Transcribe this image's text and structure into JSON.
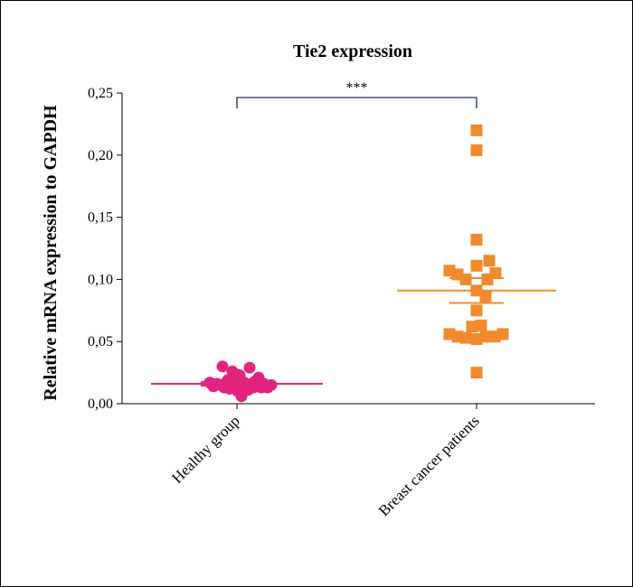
{
  "chart_data": {
    "type": "scatter",
    "title": "Tie2 expression",
    "ylabel": "Relative mRNA expression to GAPDH",
    "xlabel": "",
    "ylim": [
      0,
      0.25
    ],
    "yticks": [
      "0,00",
      "0,05",
      "0,10",
      "0,15",
      "0,20",
      "0,25"
    ],
    "categories": [
      "Healthy group",
      "Breast cancer patients"
    ],
    "significance": "***",
    "series": [
      {
        "category": "Healthy group",
        "color": "#e3247f",
        "marker": "circle",
        "mean": 0.016,
        "sem_low": 0.0145,
        "sem_high": 0.0175,
        "points": [
          [
            -0.3,
            0.017
          ],
          [
            -0.26,
            0.014
          ],
          [
            -0.22,
            0.016
          ],
          [
            -0.18,
            0.015
          ],
          [
            -0.16,
            0.03
          ],
          [
            -0.14,
            0.013
          ],
          [
            -0.12,
            0.017
          ],
          [
            -0.1,
            0.019
          ],
          [
            -0.08,
            0.012
          ],
          [
            -0.06,
            0.014
          ],
          [
            -0.05,
            0.026
          ],
          [
            -0.04,
            0.016
          ],
          [
            -0.02,
            0.013
          ],
          [
            0.0,
            0.02
          ],
          [
            0.01,
            0.01
          ],
          [
            0.02,
            0.015
          ],
          [
            0.03,
            0.023
          ],
          [
            0.04,
            0.018
          ],
          [
            0.05,
            0.006
          ],
          [
            0.06,
            0.013
          ],
          [
            0.08,
            0.017
          ],
          [
            0.1,
            0.014
          ],
          [
            0.12,
            0.011
          ],
          [
            0.14,
            0.029
          ],
          [
            0.16,
            0.016
          ],
          [
            0.18,
            0.013
          ],
          [
            0.2,
            0.018
          ],
          [
            0.22,
            0.014
          ],
          [
            0.24,
            0.021
          ],
          [
            0.27,
            0.013
          ],
          [
            0.3,
            0.016
          ],
          [
            0.34,
            0.013
          ],
          [
            0.38,
            0.015
          ]
        ]
      },
      {
        "category": "Breast cancer patients",
        "color": "#f08a2c",
        "marker": "square",
        "mean": 0.091,
        "sem_low": 0.081,
        "sem_high": 0.101,
        "points": [
          [
            -0.3,
            0.107
          ],
          [
            -0.3,
            0.056
          ],
          [
            -0.21,
            0.104
          ],
          [
            -0.21,
            0.054
          ],
          [
            -0.12,
            0.1
          ],
          [
            -0.12,
            0.053
          ],
          [
            0.0,
            0.22
          ],
          [
            0.0,
            0.204
          ],
          [
            0.0,
            0.132
          ],
          [
            0.0,
            0.111
          ],
          [
            0.0,
            0.091
          ],
          [
            0.0,
            0.075
          ],
          [
            0.0,
            0.052
          ],
          [
            0.0,
            0.025
          ],
          [
            -0.05,
            0.062
          ],
          [
            0.05,
            0.063
          ],
          [
            0.1,
            0.086
          ],
          [
            0.12,
            0.1
          ],
          [
            0.1,
            0.054
          ],
          [
            0.14,
            0.115
          ],
          [
            0.2,
            0.054
          ],
          [
            0.21,
            0.105
          ],
          [
            0.29,
            0.056
          ]
        ]
      }
    ]
  }
}
